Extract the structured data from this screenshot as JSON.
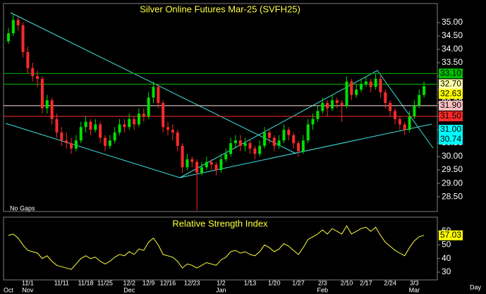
{
  "chart_data": {
    "type": "candlestick",
    "title": "Silver Online Futures Mar-25 (SVFH25)",
    "annotation": "No Gaps",
    "x_axis_label": "Day",
    "up_color": "#00e000",
    "down_color": "#ff2a2a",
    "xlim": [
      -1.02,
      88.76
    ],
    "ylim": [
      27.95,
      35.71
    ],
    "yticks": [
      {
        "value": 35,
        "label": "35.00"
      },
      {
        "value": 34.5,
        "label": "34.50"
      },
      {
        "value": 34,
        "label": "34.00"
      },
      {
        "value": 33.5,
        "label": "33.50"
      },
      {
        "value": 33,
        "label": "33.00"
      },
      {
        "value": 32.5,
        "label": "32.50"
      },
      {
        "value": 32,
        "label": "32.00"
      },
      {
        "value": 31.5,
        "label": "31.50"
      },
      {
        "value": 31,
        "label": "31.00"
      },
      {
        "value": 30.5,
        "label": "30.50"
      },
      {
        "value": 30,
        "label": "30.00"
      },
      {
        "value": 29.5,
        "label": "29.50"
      },
      {
        "value": 29,
        "label": "29.00"
      },
      {
        "value": 28.5,
        "label": "28.50"
      }
    ],
    "xticks": [
      {
        "value": 4,
        "label": "11/1"
      },
      {
        "value": 11,
        "label": "11/11"
      },
      {
        "value": 16,
        "label": "11/18"
      },
      {
        "value": 20,
        "label": "11/25"
      },
      {
        "value": 25,
        "label": "12/2"
      },
      {
        "value": 29,
        "label": "12/9"
      },
      {
        "value": 33,
        "label": "12/16"
      },
      {
        "value": 38,
        "label": "12/23"
      },
      {
        "value": 44,
        "label": "1/2"
      },
      {
        "value": 50,
        "label": "1/13"
      },
      {
        "value": 55,
        "label": "1/20"
      },
      {
        "value": 60,
        "label": "1/27"
      },
      {
        "value": 65,
        "label": "2/3"
      },
      {
        "value": 70,
        "label": "2/10"
      },
      {
        "value": 74,
        "label": "2/17"
      },
      {
        "value": 79,
        "label": "2/24"
      },
      {
        "value": 84,
        "label": "3/3"
      }
    ],
    "month_ticks": [
      {
        "value": 0,
        "label": "Oct"
      },
      {
        "value": 4,
        "label": "Nov"
      },
      {
        "value": 25,
        "label": "Dec"
      },
      {
        "value": 44,
        "label": "Jan"
      },
      {
        "value": 65,
        "label": "Feb"
      },
      {
        "value": 84,
        "label": "Mar"
      }
    ],
    "open": [
      34.3,
      34.6,
      35.1,
      34.9,
      33.9,
      33.3,
      33.0,
      32.9,
      31.8,
      32.1,
      31.4,
      30.9,
      30.6,
      30.5,
      30.3,
      30.6,
      31.1,
      31.3,
      31.0,
      31.2,
      30.7,
      30.4,
      30.6,
      30.9,
      31.2,
      31.1,
      31.4,
      31.2,
      31.6,
      31.5,
      32.2,
      32.6,
      32.0,
      31.1,
      31.0,
      30.9,
      30.4,
      29.6,
      29.9,
      29.8,
      29.4,
      29.6,
      29.8,
      29.7,
      29.5,
      29.9,
      30.1,
      30.5,
      30.6,
      30.4,
      30.5,
      30.3,
      30.1,
      30.4,
      30.9,
      30.7,
      30.4,
      30.6,
      31.0,
      30.8,
      30.5,
      30.2,
      30.6,
      31.2,
      31.4,
      31.7,
      32.0,
      31.8,
      32.1,
      32.0,
      31.9,
      32.8,
      32.3,
      32.5,
      32.7,
      32.8,
      32.6,
      32.9,
      32.4,
      32.0,
      31.7,
      31.4,
      31.2,
      31.0,
      31.5,
      31.9,
      32.3
    ],
    "high": [
      34.8,
      35.3,
      35.2,
      35.0,
      34.1,
      33.5,
      33.2,
      33.0,
      32.3,
      32.2,
      31.6,
      31.1,
      30.9,
      30.7,
      30.8,
      31.3,
      31.5,
      31.4,
      31.4,
      31.3,
      30.8,
      30.8,
      31.1,
      31.4,
      31.4,
      31.6,
      31.5,
      31.8,
      31.8,
      32.4,
      32.8,
      32.7,
      32.1,
      31.3,
      31.2,
      31.0,
      30.5,
      30.1,
      30.0,
      29.9,
      29.8,
      30.0,
      29.9,
      29.8,
      30.1,
      30.3,
      30.7,
      30.8,
      30.8,
      30.7,
      30.6,
      30.4,
      30.6,
      31.1,
      31.0,
      30.8,
      30.8,
      31.2,
      31.1,
      30.9,
      30.6,
      30.8,
      31.4,
      31.6,
      31.9,
      32.2,
      32.1,
      32.3,
      32.2,
      32.1,
      33.0,
      32.9,
      32.7,
      32.9,
      33.0,
      32.9,
      33.1,
      33.0,
      32.5,
      32.1,
      31.8,
      31.5,
      31.3,
      31.7,
      32.1,
      32.5,
      32.8
    ],
    "low": [
      34.2,
      34.5,
      34.7,
      33.7,
      33.1,
      32.8,
      32.6,
      31.6,
      31.6,
      31.2,
      30.7,
      30.4,
      30.3,
      30.1,
      30.2,
      30.5,
      30.9,
      30.8,
      30.9,
      30.5,
      30.2,
      30.3,
      30.5,
      30.8,
      30.9,
      31.0,
      31.0,
      31.1,
      31.3,
      31.4,
      32.0,
      31.8,
      30.9,
      30.8,
      30.6,
      30.2,
      29.4,
      29.5,
      29.6,
      28.0,
      29.3,
      29.5,
      29.5,
      29.3,
      29.4,
      29.8,
      30.0,
      30.3,
      30.2,
      30.2,
      30.1,
      29.9,
      30.0,
      30.3,
      30.5,
      30.2,
      30.3,
      30.5,
      30.6,
      30.3,
      30.0,
      30.1,
      30.5,
      31.0,
      31.3,
      31.6,
      31.5,
      31.7,
      31.8,
      31.3,
      31.8,
      32.1,
      32.2,
      32.4,
      32.6,
      32.4,
      32.5,
      32.2,
      31.8,
      31.5,
      31.2,
      31.0,
      30.8,
      30.9,
      31.4,
      31.8,
      32.2
    ],
    "close": [
      34.6,
      35.1,
      34.9,
      33.9,
      33.3,
      33.0,
      32.9,
      31.8,
      32.1,
      31.4,
      30.9,
      30.6,
      30.5,
      30.3,
      30.6,
      31.1,
      31.3,
      31.0,
      31.2,
      30.7,
      30.4,
      30.6,
      30.9,
      31.2,
      31.1,
      31.4,
      31.2,
      31.6,
      31.5,
      32.2,
      32.6,
      32.0,
      31.1,
      31.0,
      30.9,
      30.4,
      29.6,
      29.9,
      29.8,
      29.4,
      29.6,
      29.8,
      29.7,
      29.5,
      29.9,
      30.1,
      30.5,
      30.6,
      30.4,
      30.5,
      30.3,
      30.1,
      30.4,
      30.9,
      30.7,
      30.4,
      30.6,
      31.0,
      30.8,
      30.5,
      30.2,
      30.6,
      31.2,
      31.4,
      31.7,
      32.0,
      31.8,
      32.1,
      32.0,
      31.9,
      32.8,
      32.3,
      32.5,
      32.7,
      32.8,
      32.6,
      32.9,
      32.4,
      32.0,
      31.7,
      31.4,
      31.2,
      31.0,
      31.5,
      31.9,
      32.3,
      32.63
    ],
    "price_markers": [
      {
        "value": 33.1,
        "label": "33.10",
        "color": "#00c000",
        "line": "#00c000"
      },
      {
        "value": 32.7,
        "label": "32.70",
        "color": "#ffffa8",
        "line": "#00c000"
      },
      {
        "value": 32.63,
        "label": "32.63",
        "color": "#ffff00",
        "line": false
      },
      {
        "value": 31.9,
        "label": "31.90",
        "color": "#ffc0c0",
        "line": "#ffe0e0"
      },
      {
        "value": 31.5,
        "label": "31.50",
        "color": "#ff2a2a",
        "line": "#ff2a2a"
      },
      {
        "value": 31,
        "label": "31.00",
        "color": "#00ffff",
        "line": false
      },
      {
        "value": 30.74,
        "label": "30.74",
        "color": "#00ffff",
        "line": false
      }
    ],
    "rsi": {
      "title": "Relative Strength Index",
      "color": "#ffff40",
      "ylim": [
        24.3,
        70.4
      ],
      "yticks": [
        60,
        50,
        40,
        30
      ],
      "last": {
        "value": 57.03,
        "label": "57.03",
        "color": "#ffff00"
      },
      "values": [
        57,
        58,
        55,
        50,
        46,
        45,
        44,
        40,
        42,
        38,
        35,
        34,
        33,
        32,
        36,
        40,
        42,
        40,
        41,
        38,
        36,
        38,
        41,
        43,
        42,
        45,
        43,
        47,
        46,
        52,
        55,
        50,
        43,
        42,
        41,
        38,
        33,
        36,
        35,
        33,
        35,
        37,
        36,
        35,
        39,
        41,
        45,
        46,
        44,
        45,
        43,
        42,
        45,
        50,
        48,
        45,
        47,
        51,
        49,
        46,
        43,
        48,
        54,
        56,
        58,
        61,
        58,
        62,
        60,
        58,
        64,
        58,
        60,
        62,
        63,
        60,
        63,
        57,
        52,
        49,
        46,
        44,
        42,
        48,
        53,
        56,
        57.03
      ]
    }
  }
}
